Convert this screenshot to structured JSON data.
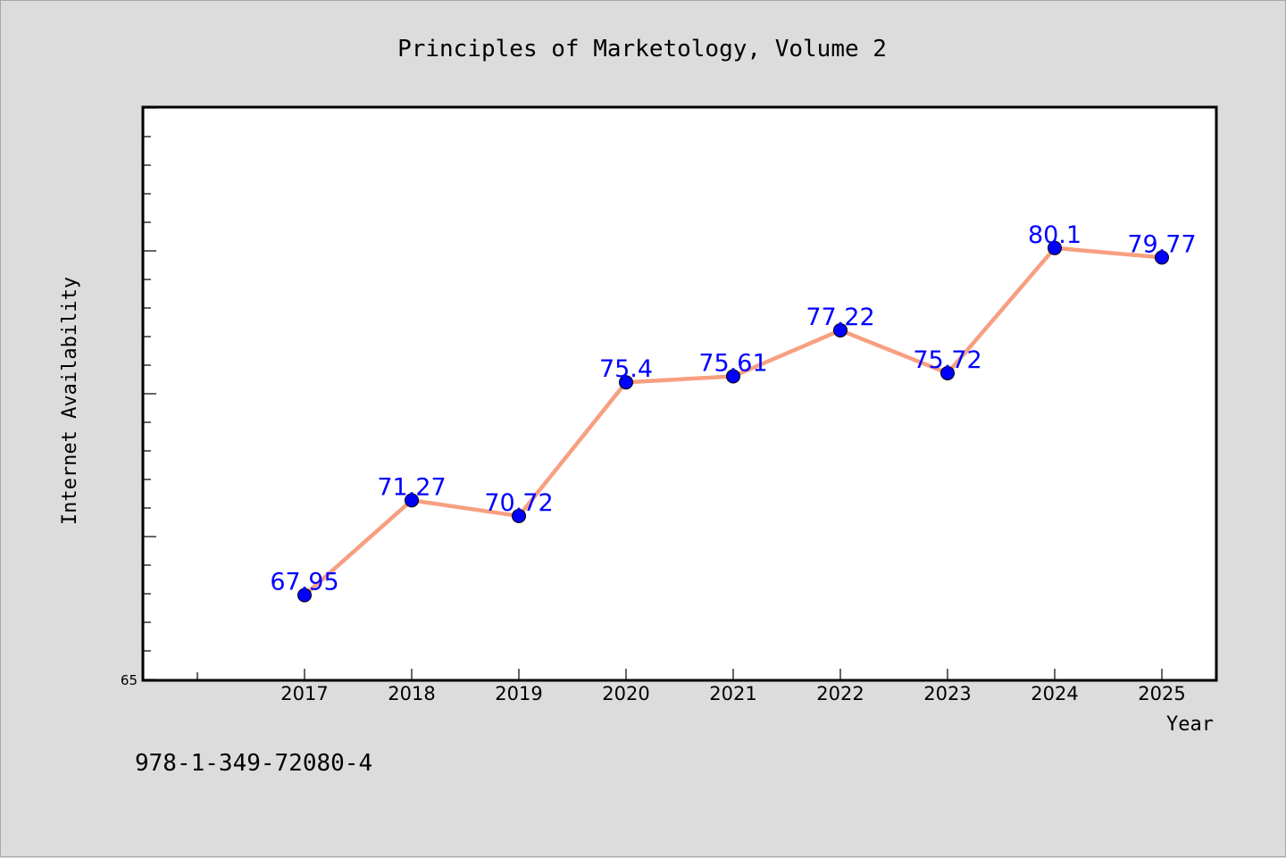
{
  "chart_data": {
    "type": "line",
    "title": "Principles of Marketology, Volume 2",
    "xlabel": "Year",
    "ylabel": "Internet Availability",
    "categories": [
      "2017",
      "2018",
      "2019",
      "2020",
      "2021",
      "2022",
      "2023",
      "2024",
      "2025"
    ],
    "series": [
      {
        "values": [
          67.95,
          71.27,
          70.72,
          75.4,
          75.61,
          77.22,
          75.72,
          80.1,
          79.77
        ]
      }
    ],
    "data_labels": [
      "67.95",
      "71.27",
      "70.72",
      "75.4",
      "75.61",
      "77.22",
      "75.72",
      "80.1",
      "79.77"
    ],
    "y_tick_labels": [
      "65"
    ],
    "ylim": [
      65,
      85
    ],
    "grid": false,
    "colors": {
      "line": "#f79f80",
      "marker": "#0000ff",
      "label": "#0000ff",
      "background": "#dcdcdc",
      "plot": "#ffffff"
    }
  },
  "footnote": "978-1-349-72080-4"
}
